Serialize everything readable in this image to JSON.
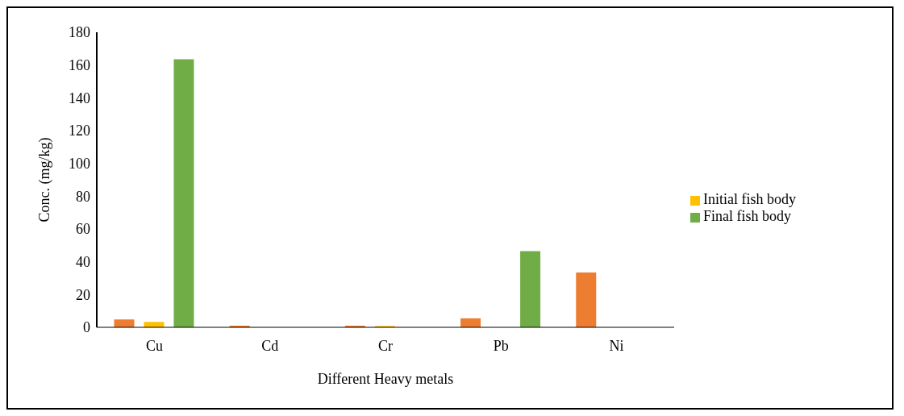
{
  "chart_data": {
    "type": "bar",
    "xlabel": "Different Heavy metals",
    "ylabel": "Conc. (mg/kg)",
    "categories": [
      "Cu",
      "Cd",
      "Cr",
      "Pb",
      "Ni"
    ],
    "series": [
      {
        "color": "#ed7d31",
        "values": [
          4.8,
          1,
          1,
          5.5,
          33.5
        ]
      },
      {
        "name": "Initial fish body",
        "color": "#ffc000",
        "values": [
          3.3,
          0,
          0.8,
          0,
          0
        ]
      },
      {
        "name": "Final fish body",
        "color": "#70ad47",
        "values": [
          163.5,
          0,
          0,
          46.5,
          0
        ]
      }
    ],
    "ylim": [
      0,
      180
    ],
    "yticks": [
      0,
      20,
      40,
      60,
      80,
      100,
      120,
      140,
      160,
      180
    ],
    "grid": false,
    "legend": "right"
  }
}
